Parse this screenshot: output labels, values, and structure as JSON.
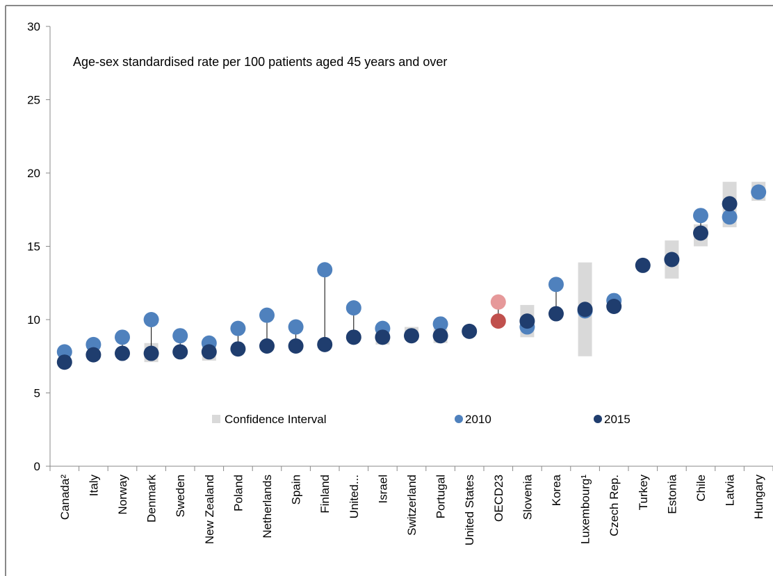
{
  "chart_data": {
    "type": "dot",
    "annotation": "Age-sex standardised rate  per 100 patients aged 45 years and over",
    "categories": [
      "Canada²",
      "Italy",
      "Norway",
      "Denmark",
      "Sweden",
      "New Zealand",
      "Poland",
      "Netherlands",
      "Spain",
      "Finland",
      "United...",
      "Israel",
      "Switzerland",
      "Portugal",
      "United States",
      "OECD23",
      "Slovenia",
      "Korea",
      "Luxembourg¹",
      "Czech Rep.",
      "Turkey",
      "Estonia",
      "Chile",
      "Latvia",
      "Hungary"
    ],
    "confidence_interval": {
      "name": "Confidence Interval",
      "color": "#d9d9d9",
      "low": [
        null,
        null,
        null,
        7.1,
        null,
        7.2,
        null,
        null,
        null,
        8.1,
        null,
        8.3,
        8.6,
        8.4,
        null,
        null,
        8.8,
        null,
        7.5,
        null,
        null,
        12.8,
        15.0,
        16.3,
        18.1
      ],
      "high": [
        null,
        null,
        null,
        8.4,
        null,
        8.5,
        null,
        null,
        null,
        8.6,
        null,
        9.3,
        9.5,
        9.4,
        null,
        null,
        11.0,
        null,
        13.9,
        null,
        null,
        15.4,
        16.5,
        19.4,
        19.4
      ]
    },
    "series": [
      {
        "name": "2010",
        "color": "#4f81bd",
        "highlight_index": 15,
        "highlight_color": "#e6999a",
        "values": [
          7.8,
          8.3,
          8.8,
          10.0,
          8.9,
          8.4,
          9.4,
          10.3,
          9.5,
          13.4,
          10.8,
          9.4,
          null,
          9.7,
          null,
          11.2,
          9.5,
          12.4,
          10.6,
          11.3,
          null,
          null,
          17.1,
          17.0,
          18.7
        ]
      },
      {
        "name": "2015",
        "color": "#1f3d6e",
        "highlight_index": 15,
        "highlight_color": "#c0504d",
        "values": [
          7.1,
          7.6,
          7.7,
          7.7,
          7.8,
          7.8,
          8.0,
          8.2,
          8.2,
          8.3,
          8.8,
          8.8,
          8.9,
          8.9,
          9.2,
          9.9,
          9.9,
          10.4,
          10.7,
          10.9,
          13.7,
          14.1,
          15.9,
          17.9,
          null
        ]
      }
    ],
    "ylim": [
      0,
      30
    ],
    "yticks": [
      0,
      5,
      10,
      15,
      20,
      25,
      30
    ]
  }
}
